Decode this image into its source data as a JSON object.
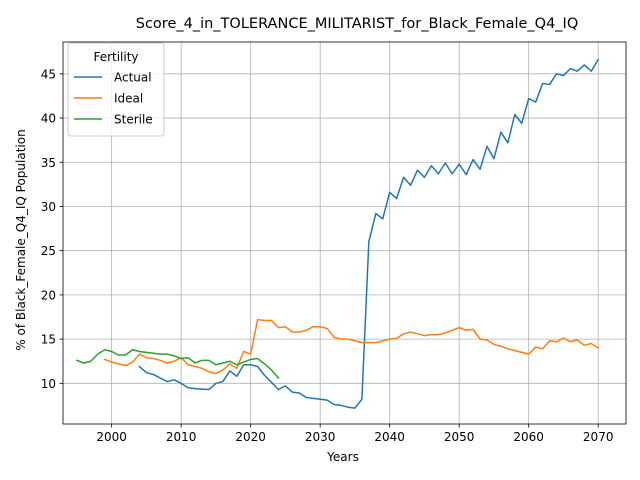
{
  "chart_data": {
    "type": "line",
    "title": "Score_4_in_TOLERANCE_MILITARIST_for_Black_Female_Q4_IQ",
    "xlabel": "Years",
    "ylabel": "% of Black_Female_Q4_IQ Population",
    "xlim": [
      1993,
      2074
    ],
    "ylim": [
      5.4,
      48.6
    ],
    "xticks": [
      2000,
      2010,
      2020,
      2030,
      2040,
      2050,
      2060,
      2070
    ],
    "yticks": [
      10,
      15,
      20,
      25,
      30,
      35,
      40,
      45
    ],
    "grid": true,
    "legend": {
      "title": "Fertility",
      "position": "top-left"
    },
    "series": [
      {
        "name": "Actual",
        "color": "#1f77b4",
        "x": [
          2004,
          2005,
          2006,
          2007,
          2008,
          2009,
          2010,
          2011,
          2012,
          2013,
          2014,
          2015,
          2016,
          2017,
          2018,
          2019,
          2020,
          2021,
          2022,
          2023,
          2024,
          2025,
          2026,
          2027,
          2028,
          2029,
          2030,
          2031,
          2032,
          2033,
          2034,
          2035,
          2036,
          2037,
          2038,
          2039,
          2040,
          2041,
          2042,
          2043,
          2044,
          2045,
          2046,
          2047,
          2048,
          2049,
          2050,
          2051,
          2052,
          2053,
          2054,
          2055,
          2056,
          2057,
          2058,
          2059,
          2060,
          2061,
          2062,
          2063,
          2064,
          2065,
          2066,
          2067,
          2068,
          2069,
          2070
        ],
        "y": [
          11.9,
          11.2,
          11.0,
          10.6,
          10.2,
          10.4,
          10.0,
          9.5,
          9.4,
          9.35,
          9.3,
          10.0,
          10.2,
          11.4,
          10.8,
          12.1,
          12.1,
          11.9,
          10.9,
          10.1,
          9.3,
          9.7,
          9.0,
          8.9,
          8.4,
          8.3,
          8.2,
          8.1,
          7.6,
          7.5,
          7.3,
          7.2,
          8.2,
          26.0,
          29.2,
          28.6,
          31.6,
          30.9,
          33.3,
          32.4,
          34.1,
          33.3,
          34.6,
          33.7,
          34.9,
          33.7,
          34.8,
          33.6,
          35.3,
          34.2,
          36.8,
          35.4,
          38.4,
          37.2,
          40.4,
          39.4,
          42.2,
          41.8,
          43.9,
          43.8,
          45.0,
          44.8,
          45.6,
          45.3,
          46.0,
          45.3,
          46.6
        ]
      },
      {
        "name": "Ideal",
        "color": "#ff7f0e",
        "x": [
          1999,
          2000,
          2001,
          2002,
          2003,
          2004,
          2005,
          2006,
          2007,
          2008,
          2009,
          2010,
          2011,
          2012,
          2013,
          2014,
          2015,
          2016,
          2017,
          2018,
          2019,
          2020,
          2021,
          2022,
          2023,
          2024,
          2025,
          2026,
          2027,
          2028,
          2029,
          2030,
          2031,
          2032,
          2033,
          2034,
          2035,
          2036,
          2037,
          2038,
          2039,
          2040,
          2041,
          2042,
          2043,
          2044,
          2045,
          2046,
          2047,
          2048,
          2049,
          2050,
          2051,
          2052,
          2053,
          2054,
          2055,
          2056,
          2057,
          2058,
          2059,
          2060,
          2061,
          2062,
          2063,
          2064,
          2065,
          2066,
          2067,
          2068,
          2069,
          2070
        ],
        "y": [
          12.7,
          12.4,
          12.2,
          12.0,
          12.4,
          13.3,
          12.9,
          12.8,
          12.6,
          12.3,
          12.5,
          12.9,
          12.1,
          11.9,
          11.7,
          11.3,
          11.1,
          11.5,
          12.2,
          11.7,
          13.6,
          13.3,
          17.2,
          17.1,
          17.1,
          16.3,
          16.4,
          15.8,
          15.8,
          16.0,
          16.4,
          16.4,
          16.2,
          15.2,
          15.0,
          15.0,
          14.8,
          14.6,
          14.6,
          14.6,
          14.8,
          15.0,
          15.1,
          15.6,
          15.8,
          15.6,
          15.4,
          15.5,
          15.5,
          15.7,
          16.0,
          16.3,
          16.0,
          16.1,
          15.0,
          14.9,
          14.4,
          14.2,
          13.9,
          13.7,
          13.5,
          13.3,
          14.1,
          13.9,
          14.8,
          14.7,
          15.1,
          14.7,
          14.9,
          14.3,
          14.5,
          14.0
        ]
      },
      {
        "name": "Sterile",
        "color": "#2ca02c",
        "x": [
          1995,
          1996,
          1997,
          1998,
          1999,
          2000,
          2001,
          2002,
          2003,
          2004,
          2005,
          2006,
          2007,
          2008,
          2009,
          2010,
          2011,
          2012,
          2013,
          2014,
          2015,
          2016,
          2017,
          2018,
          2019,
          2020,
          2021,
          2022,
          2023,
          2024
        ],
        "y": [
          12.6,
          12.3,
          12.5,
          13.3,
          13.8,
          13.6,
          13.2,
          13.2,
          13.8,
          13.6,
          13.5,
          13.4,
          13.3,
          13.3,
          13.1,
          12.8,
          12.9,
          12.3,
          12.6,
          12.6,
          12.1,
          12.3,
          12.5,
          12.1,
          12.4,
          12.7,
          12.8,
          12.2,
          11.5,
          10.6
        ]
      }
    ]
  }
}
